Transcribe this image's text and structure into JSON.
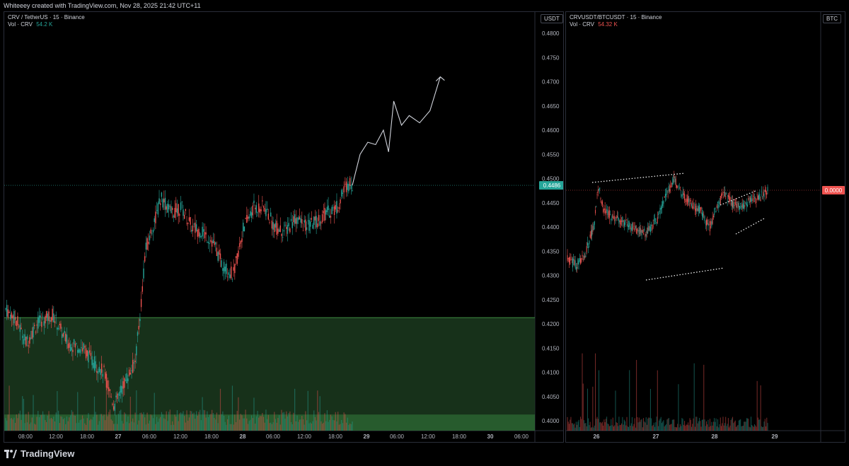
{
  "header": {
    "attribution": "Whiteeey created with TradingView.com, Nov 28, 2025 21:42 UTC+11"
  },
  "footer": {
    "brand": "TradingView"
  },
  "chart_data": [
    {
      "type": "candlestick",
      "title": "CRV / TetherUS · 15 · Binance",
      "volume_label": "Vol · CRV",
      "volume_value": "54.2 K",
      "currency": "USDT",
      "last_price": "0.4486",
      "y_ticks": [
        "0.4800",
        "0.4750",
        "0.4700",
        "0.4650",
        "0.4600",
        "0.4550",
        "0.4500",
        "0.4450",
        "0.4400",
        "0.4350",
        "0.4300",
        "0.4250",
        "0.4200",
        "0.4150",
        "0.4100",
        "0.4050",
        "0.4000"
      ],
      "x_ticks": [
        "08:00",
        "12:00",
        "18:00",
        "27",
        "06:00",
        "12:00",
        "18:00",
        "28",
        "06:00",
        "12:00",
        "18:00",
        "29",
        "06:00",
        "12:00",
        "18:00",
        "30",
        "06:00"
      ],
      "ylim": [
        0.397,
        0.4815
      ],
      "price_path": [
        [
          0,
          0.423
        ],
        [
          0.02,
          0.421
        ],
        [
          0.04,
          0.416
        ],
        [
          0.06,
          0.42
        ],
        [
          0.09,
          0.422
        ],
        [
          0.12,
          0.416
        ],
        [
          0.15,
          0.415
        ],
        [
          0.17,
          0.412
        ],
        [
          0.19,
          0.41
        ],
        [
          0.21,
          0.403
        ],
        [
          0.23,
          0.408
        ],
        [
          0.25,
          0.412
        ],
        [
          0.26,
          0.422
        ],
        [
          0.27,
          0.435
        ],
        [
          0.29,
          0.442
        ],
        [
          0.3,
          0.446
        ],
        [
          0.32,
          0.443
        ],
        [
          0.34,
          0.444
        ],
        [
          0.36,
          0.44
        ],
        [
          0.38,
          0.439
        ],
        [
          0.4,
          0.437
        ],
        [
          0.42,
          0.432
        ],
        [
          0.44,
          0.43
        ],
        [
          0.46,
          0.44
        ],
        [
          0.48,
          0.444
        ],
        [
          0.5,
          0.444
        ],
        [
          0.52,
          0.44
        ],
        [
          0.54,
          0.439
        ],
        [
          0.56,
          0.442
        ],
        [
          0.58,
          0.44
        ],
        [
          0.6,
          0.441
        ],
        [
          0.62,
          0.443
        ],
        [
          0.64,
          0.444
        ],
        [
          0.66,
          0.449
        ],
        [
          0.67,
          0.4486
        ]
      ],
      "projection": [
        [
          0.67,
          0.4486
        ],
        [
          0.685,
          0.455
        ],
        [
          0.7,
          0.4575
        ],
        [
          0.715,
          0.457
        ],
        [
          0.73,
          0.46
        ],
        [
          0.74,
          0.4555
        ],
        [
          0.75,
          0.466
        ],
        [
          0.765,
          0.461
        ],
        [
          0.78,
          0.463
        ],
        [
          0.8,
          0.4615
        ],
        [
          0.82,
          0.464
        ],
        [
          0.84,
          0.471
        ]
      ],
      "support_zone": [
        0.4013,
        0.4213
      ],
      "inner_zone": [
        0.397,
        0.4013
      ]
    },
    {
      "type": "candlestick",
      "title": "CRVUSDT/BTCUSDT · 15 · Binance",
      "volume_label": "Vol · CRV",
      "volume_value": "54.32 K",
      "currency": "BTC",
      "last_price": "0.0000",
      "x_ticks": [
        "26",
        "27",
        "28",
        "29"
      ],
      "price_path": [
        [
          0,
          0.58
        ],
        [
          0.04,
          0.62
        ],
        [
          0.08,
          0.55
        ],
        [
          0.12,
          0.35
        ],
        [
          0.14,
          0.1
        ],
        [
          0.16,
          0.24
        ],
        [
          0.2,
          0.3
        ],
        [
          0.25,
          0.33
        ],
        [
          0.3,
          0.38
        ],
        [
          0.35,
          0.41
        ],
        [
          0.4,
          0.33
        ],
        [
          0.44,
          0.18
        ],
        [
          0.48,
          0.05
        ],
        [
          0.52,
          0.16
        ],
        [
          0.56,
          0.22
        ],
        [
          0.6,
          0.26
        ],
        [
          0.64,
          0.38
        ],
        [
          0.66,
          0.28
        ],
        [
          0.7,
          0.15
        ],
        [
          0.74,
          0.21
        ],
        [
          0.78,
          0.24
        ],
        [
          0.82,
          0.19
        ],
        [
          0.86,
          0.18
        ],
        [
          0.9,
          0.12
        ]
      ]
    }
  ]
}
